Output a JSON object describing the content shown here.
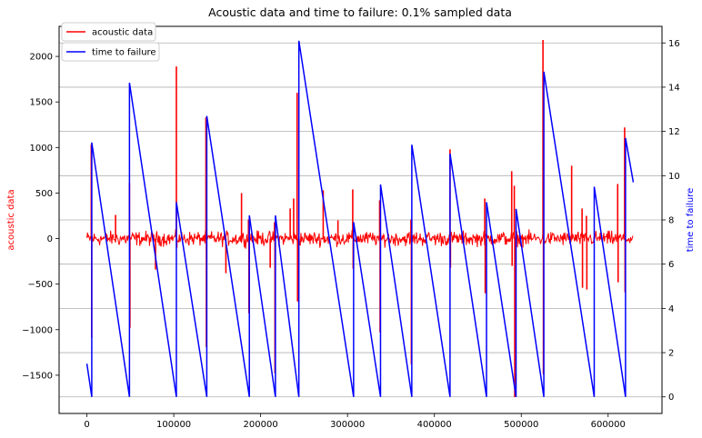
{
  "chart_data": {
    "type": "line",
    "title": "Acoustic data and time to failure: 0.1% sampled data",
    "xlabel": "",
    "ylabel_left": "acoustic data",
    "ylabel_right": "time to failure",
    "xlim": [
      -32000,
      662000
    ],
    "ylim_left": [
      -1920,
      2330
    ],
    "ylim_right": [
      -0.75,
      16.75
    ],
    "xticks": [
      0,
      100000,
      200000,
      300000,
      400000,
      500000,
      600000
    ],
    "xtick_labels": [
      "0",
      "100000",
      "200000",
      "300000",
      "400000",
      "500000",
      "600000"
    ],
    "yticks_left": [
      -1500,
      -1000,
      -500,
      0,
      500,
      1000,
      1500,
      2000
    ],
    "ytick_labels_left": [
      "−1500",
      "−1000",
      "−500",
      "0",
      "500",
      "1000",
      "1500",
      "2000"
    ],
    "yticks_right": [
      0,
      2,
      4,
      6,
      8,
      10,
      12,
      14,
      16
    ],
    "ytick_labels_right": [
      "0",
      "2",
      "4",
      "6",
      "8",
      "10",
      "12",
      "14",
      "16"
    ],
    "grid": "y-right",
    "legend_placement": "top-left",
    "series": [
      {
        "name": "acoustic data",
        "axis": "left",
        "color": "#ff0000",
        "noise_amplitude": 60,
        "x_range": [
          0,
          629000
        ],
        "spikes": [
          {
            "x": 5000,
            "y": 1030
          },
          {
            "x": 5500,
            "y": -1090
          },
          {
            "x": 33000,
            "y": 260
          },
          {
            "x": 49000,
            "y": 610
          },
          {
            "x": 49500,
            "y": -980
          },
          {
            "x": 79000,
            "y": -340
          },
          {
            "x": 103000,
            "y": 1890
          },
          {
            "x": 103500,
            "y": -100
          },
          {
            "x": 137000,
            "y": 1330
          },
          {
            "x": 137500,
            "y": -1190
          },
          {
            "x": 160000,
            "y": -380
          },
          {
            "x": 178000,
            "y": 500
          },
          {
            "x": 186000,
            "y": 210
          },
          {
            "x": 186500,
            "y": -820
          },
          {
            "x": 211000,
            "y": -320
          },
          {
            "x": 216000,
            "y": 180
          },
          {
            "x": 216500,
            "y": -1480
          },
          {
            "x": 234000,
            "y": 330
          },
          {
            "x": 238000,
            "y": 440
          },
          {
            "x": 242000,
            "y": 1600
          },
          {
            "x": 242500,
            "y": -690
          },
          {
            "x": 272000,
            "y": 530
          },
          {
            "x": 289000,
            "y": 200
          },
          {
            "x": 306000,
            "y": 540
          },
          {
            "x": 306500,
            "y": -330
          },
          {
            "x": 337000,
            "y": 420
          },
          {
            "x": 337500,
            "y": -1030
          },
          {
            "x": 373000,
            "y": 210
          },
          {
            "x": 373500,
            "y": -1380
          },
          {
            "x": 418000,
            "y": 980
          },
          {
            "x": 418500,
            "y": -320
          },
          {
            "x": 458000,
            "y": 440
          },
          {
            "x": 458500,
            "y": -600
          },
          {
            "x": 489000,
            "y": 740
          },
          {
            "x": 489500,
            "y": -300
          },
          {
            "x": 492000,
            "y": 580
          },
          {
            "x": 492500,
            "y": -1740
          },
          {
            "x": 525000,
            "y": 2180
          },
          {
            "x": 525500,
            "y": -1490
          },
          {
            "x": 558000,
            "y": 800
          },
          {
            "x": 570000,
            "y": 330
          },
          {
            "x": 570500,
            "y": -540
          },
          {
            "x": 575000,
            "y": 250
          },
          {
            "x": 575500,
            "y": -560
          },
          {
            "x": 611000,
            "y": 600
          },
          {
            "x": 611500,
            "y": -480
          },
          {
            "x": 619000,
            "y": 1220
          },
          {
            "x": 619500,
            "y": -590
          }
        ]
      },
      {
        "name": "time to failure",
        "axis": "right",
        "color": "#0000ff",
        "x": [
          0,
          5600,
          5601,
          49000,
          49001,
          103000,
          103001,
          138000,
          138001,
          187000,
          187001,
          217000,
          217001,
          244000,
          244001,
          307000,
          307001,
          338000,
          338001,
          374000,
          374001,
          418000,
          418001,
          460000,
          460001,
          494000,
          494001,
          526000,
          526001,
          584000,
          584001,
          620000,
          620001,
          629000
        ],
        "y": [
          1.5,
          0.0,
          11.5,
          0.0,
          14.2,
          0.0,
          8.8,
          0.0,
          12.7,
          0.0,
          8.2,
          0.0,
          8.2,
          0.0,
          16.1,
          0.0,
          7.9,
          0.0,
          9.6,
          0.0,
          11.4,
          0.0,
          11.0,
          0.0,
          8.8,
          0.0,
          8.5,
          0.0,
          14.7,
          0.0,
          9.5,
          0.0,
          11.7,
          9.7
        ]
      }
    ]
  }
}
